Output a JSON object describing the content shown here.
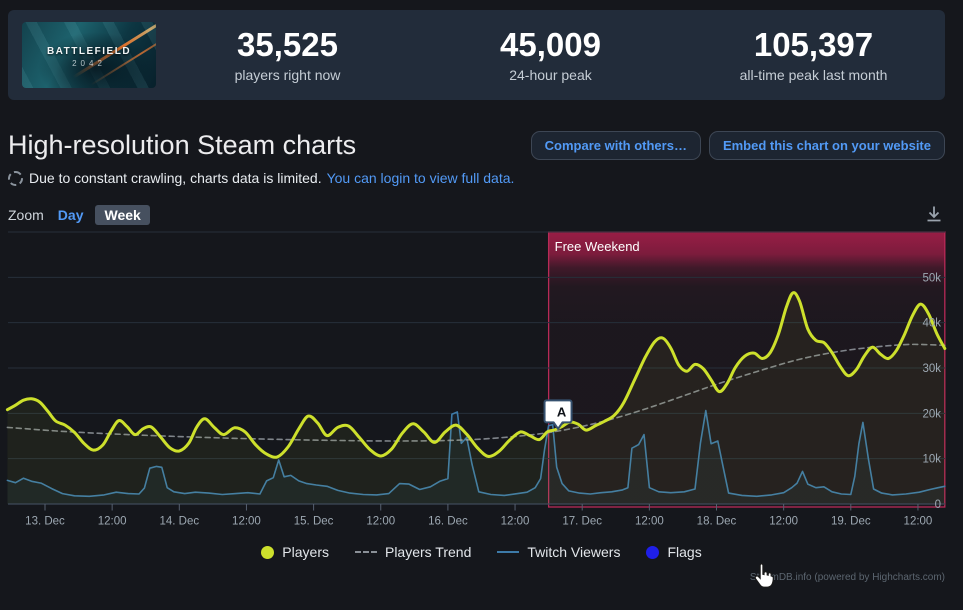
{
  "header": {
    "capsule_line1": "BATTLEFIELD",
    "capsule_line2": "2042",
    "stats": [
      {
        "value": "35,525",
        "label": "players right now"
      },
      {
        "value": "45,009",
        "label": "24-hour peak"
      },
      {
        "value": "105,397",
        "label": "all-time peak last month"
      }
    ]
  },
  "page": {
    "title": "High-resolution Steam charts",
    "buttons": {
      "compare": "Compare with others…",
      "embed": "Embed this chart on your website"
    },
    "notice": {
      "text": "Due to constant crawling, charts data is limited.",
      "link": "You can login to view full data."
    },
    "zoom": {
      "label": "Zoom",
      "day": "Day",
      "week": "Week",
      "selected": "Week"
    }
  },
  "watermark": "SteamDB.info (powered by Highcharts.com)",
  "colors": {
    "page_bg": "#15171c",
    "panel_bg": "#222c3a",
    "accent_blue": "#529af6",
    "players_line": "#cde02c",
    "twitch_line": "#3d7aa8",
    "trend_line": "#9aa0a6",
    "flags_marker": "#1f1fe8",
    "plot_band": "#a41e49",
    "plot_band_border": "#b82a57",
    "grid": "#262f3a",
    "axis_label": "#9da8b2"
  },
  "chart_data": {
    "type": "line",
    "title": "",
    "xlabel": "",
    "ylabel": "",
    "grid": true,
    "legend_position": "bottom",
    "x_axis": {
      "unit": "days since 13 Dec 00:00",
      "min": -0.28,
      "max": 6.7,
      "ticks": [
        {
          "pos": 0.0,
          "label": "13. Dec"
        },
        {
          "pos": 0.5,
          "label": "12:00"
        },
        {
          "pos": 1.0,
          "label": "14. Dec"
        },
        {
          "pos": 1.5,
          "label": "12:00"
        },
        {
          "pos": 2.0,
          "label": "15. Dec"
        },
        {
          "pos": 2.5,
          "label": "12:00"
        },
        {
          "pos": 3.0,
          "label": "16. Dec"
        },
        {
          "pos": 3.5,
          "label": "12:00"
        },
        {
          "pos": 4.0,
          "label": "17. Dec"
        },
        {
          "pos": 4.5,
          "label": "12:00"
        },
        {
          "pos": 5.0,
          "label": "18. Dec"
        },
        {
          "pos": 5.5,
          "label": "12:00"
        },
        {
          "pos": 6.0,
          "label": "19. Dec"
        },
        {
          "pos": 6.5,
          "label": "12:00"
        }
      ]
    },
    "y_axis": {
      "min": 0,
      "max": 60000,
      "grid_step": 10000,
      "labels": [
        {
          "pos": 0,
          "label": "0"
        },
        {
          "pos": 10000,
          "label": "10k"
        },
        {
          "pos": 20000,
          "label": "20k"
        },
        {
          "pos": 30000,
          "label": "30k"
        },
        {
          "pos": 40000,
          "label": "40k"
        },
        {
          "pos": 50000,
          "label": "50k"
        }
      ]
    },
    "plot_band": {
      "label": "Free Weekend",
      "from": 3.75,
      "to": 6.7,
      "color": "#a41e49",
      "border": "#b82a57"
    },
    "flag": {
      "series": "Flags",
      "label": "A",
      "x": 3.85,
      "y": 15800
    },
    "legend": [
      {
        "label": "Players",
        "marker": "circle",
        "color": "#cde02c"
      },
      {
        "label": "Players Trend",
        "marker": "dash",
        "color": "#8a9097"
      },
      {
        "label": "Twitch Viewers",
        "marker": "line",
        "color": "#3d7aa8"
      },
      {
        "label": "Flags",
        "marker": "circle",
        "color": "#1f1fe8"
      }
    ],
    "series": [
      {
        "name": "Players",
        "color": "#cde02c",
        "style": "smooth",
        "width": 3,
        "fill_opacity": 0.06,
        "points": [
          [
            -0.28,
            20800
          ],
          [
            -0.22,
            21800
          ],
          [
            -0.16,
            22900
          ],
          [
            -0.1,
            23200
          ],
          [
            -0.04,
            22500
          ],
          [
            0.02,
            20500
          ],
          [
            0.08,
            18300
          ],
          [
            0.15,
            17400
          ],
          [
            0.22,
            15800
          ],
          [
            0.29,
            13400
          ],
          [
            0.36,
            11900
          ],
          [
            0.43,
            13000
          ],
          [
            0.49,
            16000
          ],
          [
            0.55,
            18400
          ],
          [
            0.61,
            17100
          ],
          [
            0.67,
            15300
          ],
          [
            0.73,
            16600
          ],
          [
            0.79,
            17000
          ],
          [
            0.86,
            14800
          ],
          [
            0.93,
            12400
          ],
          [
            1.0,
            11700
          ],
          [
            1.07,
            13400
          ],
          [
            1.13,
            17000
          ],
          [
            1.19,
            18800
          ],
          [
            1.26,
            16900
          ],
          [
            1.33,
            15300
          ],
          [
            1.41,
            16800
          ],
          [
            1.49,
            15900
          ],
          [
            1.57,
            13000
          ],
          [
            1.65,
            11000
          ],
          [
            1.73,
            10400
          ],
          [
            1.81,
            12600
          ],
          [
            1.89,
            16600
          ],
          [
            1.96,
            19400
          ],
          [
            2.03,
            17900
          ],
          [
            2.1,
            15100
          ],
          [
            2.18,
            16900
          ],
          [
            2.26,
            17200
          ],
          [
            2.34,
            14700
          ],
          [
            2.42,
            12000
          ],
          [
            2.5,
            10600
          ],
          [
            2.58,
            12100
          ],
          [
            2.66,
            15600
          ],
          [
            2.74,
            17700
          ],
          [
            2.82,
            15900
          ],
          [
            2.9,
            13600
          ],
          [
            2.98,
            15900
          ],
          [
            3.06,
            17400
          ],
          [
            3.14,
            15400
          ],
          [
            3.22,
            12400
          ],
          [
            3.3,
            10500
          ],
          [
            3.38,
            11600
          ],
          [
            3.46,
            14100
          ],
          [
            3.54,
            15900
          ],
          [
            3.61,
            15100
          ],
          [
            3.68,
            14200
          ],
          [
            3.74,
            15900
          ],
          [
            3.79,
            16300
          ],
          [
            3.85,
            17100
          ],
          [
            3.91,
            18100
          ],
          [
            3.97,
            17600
          ],
          [
            4.03,
            16300
          ],
          [
            4.1,
            17300
          ],
          [
            4.17,
            18300
          ],
          [
            4.24,
            19600
          ],
          [
            4.31,
            22400
          ],
          [
            4.39,
            27400
          ],
          [
            4.47,
            32400
          ],
          [
            4.54,
            35800
          ],
          [
            4.6,
            36600
          ],
          [
            4.66,
            34400
          ],
          [
            4.72,
            30600
          ],
          [
            4.78,
            29300
          ],
          [
            4.84,
            30800
          ],
          [
            4.9,
            29900
          ],
          [
            4.96,
            27400
          ],
          [
            5.02,
            24800
          ],
          [
            5.08,
            26600
          ],
          [
            5.14,
            30100
          ],
          [
            5.21,
            32600
          ],
          [
            5.28,
            33300
          ],
          [
            5.34,
            32100
          ],
          [
            5.4,
            33400
          ],
          [
            5.46,
            37400
          ],
          [
            5.52,
            43400
          ],
          [
            5.57,
            46600
          ],
          [
            5.62,
            44600
          ],
          [
            5.68,
            38600
          ],
          [
            5.74,
            36100
          ],
          [
            5.8,
            35600
          ],
          [
            5.86,
            33400
          ],
          [
            5.92,
            30400
          ],
          [
            5.98,
            28300
          ],
          [
            6.04,
            29600
          ],
          [
            6.1,
            32600
          ],
          [
            6.16,
            34600
          ],
          [
            6.22,
            33100
          ],
          [
            6.28,
            32100
          ],
          [
            6.34,
            33900
          ],
          [
            6.4,
            37400
          ],
          [
            6.46,
            41600
          ],
          [
            6.52,
            44100
          ],
          [
            6.58,
            41900
          ],
          [
            6.64,
            37600
          ],
          [
            6.7,
            34300
          ]
        ]
      },
      {
        "name": "Players Trend",
        "color": "#9aa0a6",
        "style": "smooth-dashed",
        "width": 1.6,
        "fill_opacity": 0,
        "points": [
          [
            -0.28,
            16900
          ],
          [
            0.2,
            15900
          ],
          [
            0.8,
            15100
          ],
          [
            1.4,
            14500
          ],
          [
            2.0,
            14100
          ],
          [
            2.6,
            13900
          ],
          [
            3.1,
            14100
          ],
          [
            3.5,
            14900
          ],
          [
            3.8,
            16000
          ],
          [
            4.1,
            17800
          ],
          [
            4.4,
            20300
          ],
          [
            4.7,
            23300
          ],
          [
            5.0,
            26400
          ],
          [
            5.3,
            29200
          ],
          [
            5.6,
            31800
          ],
          [
            5.9,
            33600
          ],
          [
            6.2,
            34700
          ],
          [
            6.45,
            35200
          ],
          [
            6.7,
            35000
          ]
        ]
      },
      {
        "name": "Twitch Viewers",
        "color": "#3d7aa8",
        "style": "linear",
        "width": 1.6,
        "fill_opacity": 0.07,
        "points": [
          [
            -0.28,
            5200
          ],
          [
            -0.22,
            4700
          ],
          [
            -0.16,
            5700
          ],
          [
            -0.1,
            5000
          ],
          [
            -0.03,
            4600
          ],
          [
            0.05,
            3400
          ],
          [
            0.13,
            2300
          ],
          [
            0.22,
            1800
          ],
          [
            0.33,
            1700
          ],
          [
            0.44,
            2000
          ],
          [
            0.53,
            2600
          ],
          [
            0.62,
            2300
          ],
          [
            0.7,
            2200
          ],
          [
            0.74,
            3500
          ],
          [
            0.78,
            7900
          ],
          [
            0.83,
            8300
          ],
          [
            0.87,
            8100
          ],
          [
            0.91,
            3600
          ],
          [
            0.96,
            2700
          ],
          [
            1.04,
            2300
          ],
          [
            1.12,
            2600
          ],
          [
            1.22,
            2400
          ],
          [
            1.32,
            2100
          ],
          [
            1.42,
            2300
          ],
          [
            1.51,
            2500
          ],
          [
            1.6,
            2200
          ],
          [
            1.65,
            5100
          ],
          [
            1.7,
            5800
          ],
          [
            1.74,
            9700
          ],
          [
            1.78,
            6000
          ],
          [
            1.83,
            6300
          ],
          [
            1.89,
            5100
          ],
          [
            1.95,
            4500
          ],
          [
            2.02,
            4200
          ],
          [
            2.1,
            3900
          ],
          [
            2.18,
            3000
          ],
          [
            2.27,
            2400
          ],
          [
            2.37,
            2100
          ],
          [
            2.47,
            2000
          ],
          [
            2.56,
            2300
          ],
          [
            2.64,
            4500
          ],
          [
            2.71,
            4400
          ],
          [
            2.79,
            3200
          ],
          [
            2.87,
            3800
          ],
          [
            2.94,
            5000
          ],
          [
            3.0,
            5600
          ],
          [
            3.03,
            19800
          ],
          [
            3.07,
            20300
          ],
          [
            3.1,
            13400
          ],
          [
            3.14,
            14700
          ],
          [
            3.18,
            8700
          ],
          [
            3.23,
            2700
          ],
          [
            3.32,
            2100
          ],
          [
            3.42,
            1900
          ],
          [
            3.52,
            2300
          ],
          [
            3.59,
            2600
          ],
          [
            3.65,
            3600
          ],
          [
            3.69,
            5600
          ],
          [
            3.72,
            12100
          ],
          [
            3.75,
            17300
          ],
          [
            3.78,
            17500
          ],
          [
            3.81,
            8100
          ],
          [
            3.85,
            4500
          ],
          [
            3.9,
            2900
          ],
          [
            3.98,
            2400
          ],
          [
            4.06,
            2200
          ],
          [
            4.14,
            2500
          ],
          [
            4.22,
            2700
          ],
          [
            4.3,
            3100
          ],
          [
            4.34,
            3600
          ],
          [
            4.37,
            12300
          ],
          [
            4.42,
            13100
          ],
          [
            4.46,
            15300
          ],
          [
            4.5,
            3600
          ],
          [
            4.57,
            2700
          ],
          [
            4.66,
            2500
          ],
          [
            4.76,
            2700
          ],
          [
            4.84,
            3300
          ],
          [
            4.88,
            13400
          ],
          [
            4.92,
            20600
          ],
          [
            4.96,
            13300
          ],
          [
            5.01,
            13900
          ],
          [
            5.05,
            8100
          ],
          [
            5.09,
            2400
          ],
          [
            5.19,
            1900
          ],
          [
            5.3,
            1700
          ],
          [
            5.41,
            2000
          ],
          [
            5.5,
            2500
          ],
          [
            5.56,
            3600
          ],
          [
            5.6,
            4600
          ],
          [
            5.64,
            7200
          ],
          [
            5.68,
            4400
          ],
          [
            5.74,
            3600
          ],
          [
            5.8,
            3800
          ],
          [
            5.86,
            2700
          ],
          [
            5.93,
            2200
          ],
          [
            6.0,
            2100
          ],
          [
            6.03,
            6100
          ],
          [
            6.06,
            13300
          ],
          [
            6.09,
            18000
          ],
          [
            6.13,
            10100
          ],
          [
            6.17,
            3300
          ],
          [
            6.23,
            2400
          ],
          [
            6.31,
            2000
          ],
          [
            6.41,
            2200
          ],
          [
            6.51,
            2600
          ],
          [
            6.59,
            3200
          ],
          [
            6.65,
            3600
          ],
          [
            6.7,
            3900
          ]
        ]
      }
    ]
  }
}
